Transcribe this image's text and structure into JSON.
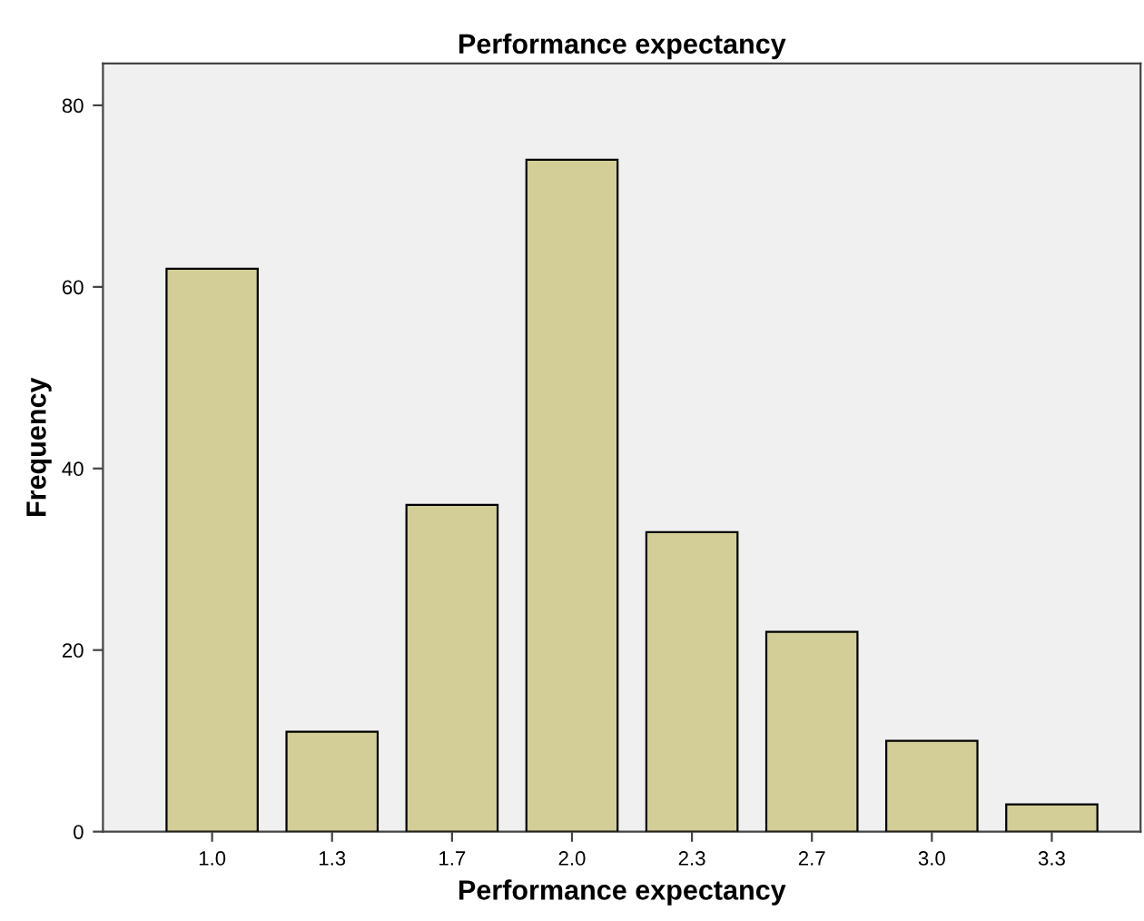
{
  "chart_data": {
    "type": "bar",
    "title": "Performance expectancy",
    "xlabel": "Performance expectancy",
    "ylabel": "Frequency",
    "categories": [
      "1.0",
      "1.3",
      "1.7",
      "2.0",
      "2.3",
      "2.7",
      "3.0",
      "3.3"
    ],
    "values": [
      62,
      11,
      36,
      74,
      33,
      22,
      10,
      3
    ],
    "color": "#d3ce97",
    "ylim": [
      0,
      84.6
    ],
    "yticks": [
      0,
      20,
      40,
      60,
      80
    ],
    "grid": false,
    "legend": false
  }
}
